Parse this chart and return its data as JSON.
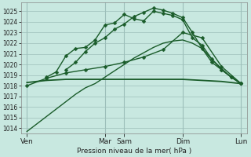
{
  "xlabel": "Pression niveau de la mer( hPa )",
  "bg_color": "#c8e8e0",
  "grid_color": "#9dbfba",
  "line_color_dark": "#1a5c2a",
  "line_color_mid": "#2a7a3a",
  "ylim": [
    1013.5,
    1025.8
  ],
  "yticks": [
    1014,
    1015,
    1016,
    1017,
    1018,
    1019,
    1020,
    1021,
    1022,
    1023,
    1024,
    1025
  ],
  "day_labels": [
    "Ven",
    "",
    "Mar",
    "Sam",
    "",
    "Dim",
    "",
    "Lun"
  ],
  "xtick_labels": [
    "Ven",
    "Mar",
    "Sam",
    "Dim",
    "Lun"
  ],
  "xtick_positions": [
    0,
    4,
    5,
    8,
    11
  ],
  "lines": [
    {
      "x": [
        0,
        0.5,
        1,
        1.5,
        2,
        2.5,
        3,
        3.5,
        4,
        4.5,
        5,
        5.5,
        6,
        6.5,
        7,
        7.5,
        8,
        8.5,
        9,
        9.5,
        10,
        10.5,
        11
      ],
      "y": [
        1013.7,
        1014.4,
        1015.1,
        1015.8,
        1016.5,
        1017.2,
        1017.8,
        1018.2,
        1018.8,
        1019.4,
        1020.0,
        1020.6,
        1021.1,
        1021.6,
        1022.0,
        1022.2,
        1022.3,
        1022.0,
        1021.5,
        1020.5,
        1019.6,
        1018.8,
        1018.2
      ],
      "marker": null,
      "lw": 1.0
    },
    {
      "x": [
        0,
        1,
        2,
        3,
        4,
        5,
        6,
        7,
        8,
        9,
        10,
        11
      ],
      "y": [
        1018.3,
        1018.5,
        1018.6,
        1018.6,
        1018.6,
        1018.6,
        1018.6,
        1018.6,
        1018.6,
        1018.5,
        1018.4,
        1018.2
      ],
      "marker": null,
      "lw": 1.3
    },
    {
      "x": [
        0,
        1,
        2,
        3,
        4,
        5,
        6,
        7,
        8,
        9,
        10,
        11
      ],
      "y": [
        1018.0,
        1018.7,
        1019.2,
        1019.5,
        1019.8,
        1020.2,
        1020.7,
        1021.4,
        1023.0,
        1022.5,
        1019.8,
        1018.2
      ],
      "marker": "D",
      "lw": 1.0,
      "ms": 2.5
    },
    {
      "x": [
        1,
        1.5,
        2,
        2.5,
        3,
        3.5,
        4,
        4.5,
        5,
        5.5,
        6,
        6.5,
        7,
        7.5,
        8,
        8.5,
        9,
        9.5,
        10,
        10.5,
        11
      ],
      "y": [
        1018.8,
        1019.3,
        1020.8,
        1021.5,
        1021.6,
        1022.3,
        1023.7,
        1023.9,
        1024.7,
        1024.3,
        1024.1,
        1025.0,
        1024.8,
        1024.6,
        1024.2,
        1022.5,
        1021.8,
        1020.5,
        1019.5,
        1018.8,
        1018.2
      ],
      "marker": "D",
      "lw": 1.0,
      "ms": 2.5
    },
    {
      "x": [
        2,
        2.5,
        3,
        3.5,
        4,
        4.5,
        5,
        5.5,
        6,
        6.5,
        7,
        7.5,
        8,
        8.5,
        9,
        9.5,
        10,
        10.5,
        11
      ],
      "y": [
        1019.5,
        1020.2,
        1021.2,
        1022.0,
        1022.5,
        1023.3,
        1023.8,
        1024.5,
        1024.9,
        1025.3,
        1025.1,
        1024.8,
        1024.4,
        1023.0,
        1021.5,
        1020.2,
        1019.5,
        1018.8,
        1018.2
      ],
      "marker": "D",
      "lw": 1.0,
      "ms": 2.5
    }
  ]
}
